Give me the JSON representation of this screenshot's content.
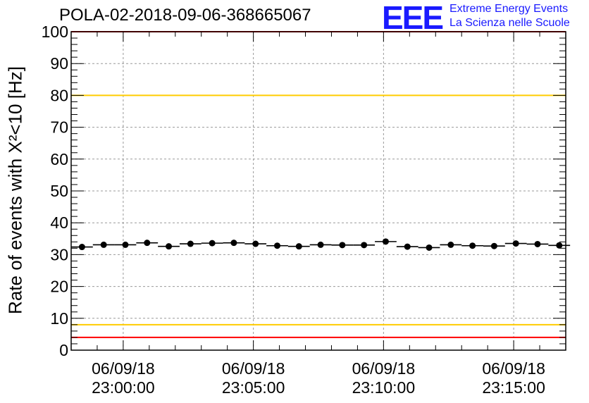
{
  "header": {
    "title": "POLA-02-2018-09-06-368665067",
    "logo_mark": "EEE",
    "logo_line1": "Extreme Energy Events",
    "logo_line2": "La Scienza nelle Scuole"
  },
  "chart_data": {
    "type": "scatter",
    "title": "POLA-02-2018-09-06-368665067",
    "xlabel": "",
    "ylabel": "Rate of events with X²<10 [Hz]",
    "ylim": [
      0,
      100
    ],
    "y_ticks": [
      0,
      10,
      20,
      30,
      40,
      50,
      60,
      70,
      80,
      90,
      100
    ],
    "x_ticks": [
      {
        "time": "23:00:00",
        "date": "06/09/18"
      },
      {
        "time": "23:05:00",
        "date": "06/09/18"
      },
      {
        "time": "23:10:00",
        "date": "06/09/18"
      },
      {
        "time": "23:15:00",
        "date": "06/09/18"
      }
    ],
    "xlim": [
      "22:58:00",
      "23:17:00"
    ],
    "grid": true,
    "reference_lines": [
      {
        "y": 100,
        "color": "#ff0000"
      },
      {
        "y": 80,
        "color": "#ffcc00"
      },
      {
        "y": 8,
        "color": "#ffcc00"
      },
      {
        "y": 4,
        "color": "#ff0000"
      }
    ],
    "series": [
      {
        "marker_color": "#000000",
        "bin_width_seconds": 50,
        "x": [
          "22:58:25",
          "22:59:15",
          "23:00:05",
          "23:00:55",
          "23:01:45",
          "23:02:35",
          "23:03:25",
          "23:04:15",
          "23:05:05",
          "23:05:55",
          "23:06:45",
          "23:07:35",
          "23:08:25",
          "23:09:15",
          "23:10:05",
          "23:10:55",
          "23:11:45",
          "23:12:35",
          "23:13:25",
          "23:14:15",
          "23:15:05",
          "23:15:55",
          "23:16:45"
        ],
        "values": [
          32.4,
          33.1,
          33.1,
          33.7,
          32.6,
          33.4,
          33.6,
          33.7,
          33.4,
          32.8,
          32.6,
          33.1,
          33.0,
          33.0,
          34.1,
          32.5,
          32.2,
          33.1,
          32.8,
          32.7,
          33.5,
          33.3,
          32.9
        ]
      }
    ]
  }
}
